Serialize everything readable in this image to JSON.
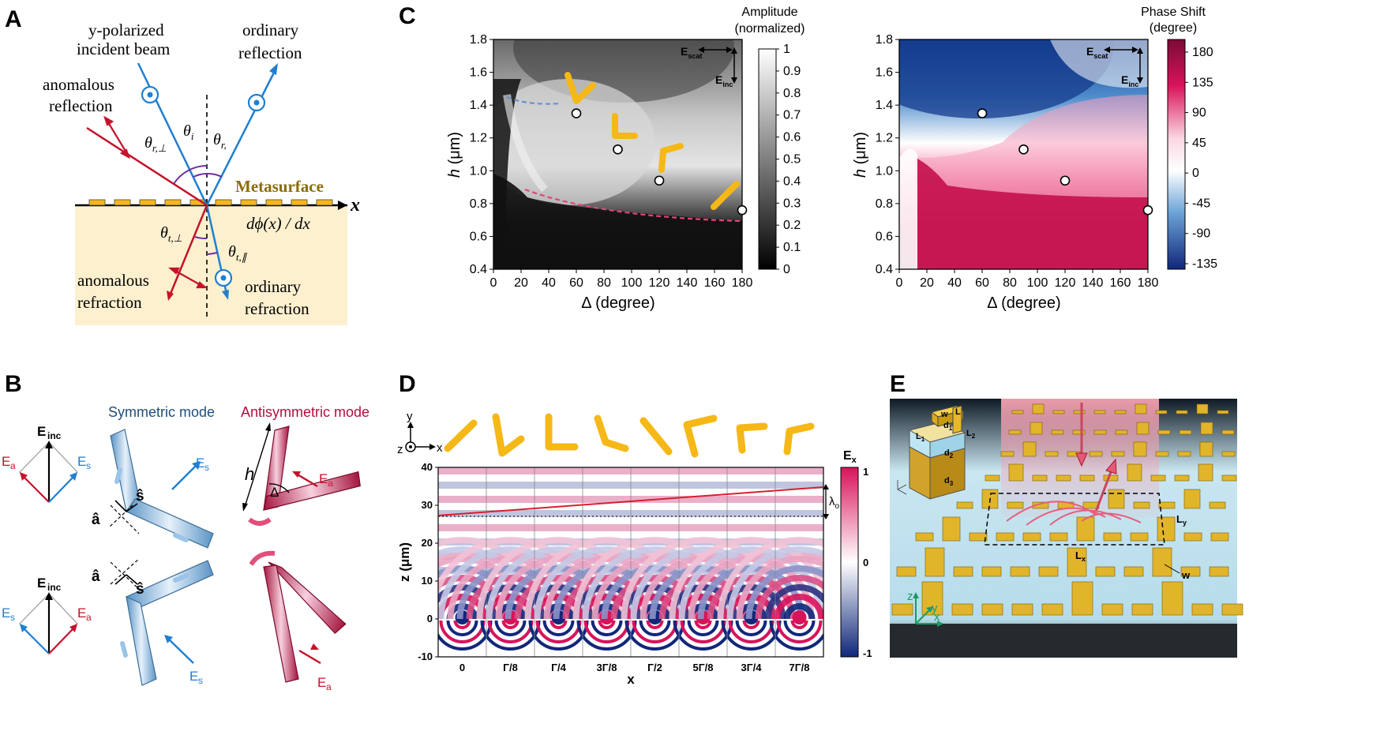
{
  "panels": {
    "A": {
      "letter": "A",
      "incident_label_1": "y-polarized",
      "incident_label_2": "incident beam",
      "ordinary_reflection_1": "ordinary",
      "ordinary_reflection_2": "reflection",
      "anomalous_reflection_1": "anomalous",
      "anomalous_reflection_2": "reflection",
      "metasurface": "Metasurface",
      "x_axis": "x",
      "gradient": "dϕ(x) / dx",
      "anomalous_refraction_1": "anomalous",
      "anomalous_refraction_2": "refraction",
      "ordinary_refraction_1": "ordinary",
      "ordinary_refraction_2": "refraction",
      "theta_i": "θ",
      "theta_i_sub": "i",
      "theta_r": "θ",
      "theta_r_sub": "r,",
      "theta_r_perp": "θ",
      "theta_r_perp_sub": "r,⊥",
      "theta_t_perp": "θ",
      "theta_t_perp_sub": "t,⊥",
      "theta_t_par": "θ",
      "theta_t_par_sub": "t,∥"
    },
    "B": {
      "letter": "B",
      "symmetric_mode": "Symmetric mode",
      "antisymmetric_mode": "Antisymmetric mode",
      "E_inc": "E",
      "E_inc_sub": "inc",
      "E_a": "E",
      "E_a_sub": "a",
      "E_s": "E",
      "E_s_sub": "s",
      "a_hat": "â",
      "s_hat": "ŝ",
      "h": "h",
      "delta": "Δ"
    },
    "C": {
      "letter": "C",
      "amp_title_1": "Amplitude",
      "amp_title_2": "(normalized)",
      "phase_title_1": "Phase Shift",
      "phase_title_2": "(degree)",
      "ylabel_h": "h",
      "ylabel_unit": " (μm)",
      "xlabel": "Δ (degree)",
      "E_scat": "E",
      "E_scat_sub": "scat",
      "E_inc": "E",
      "E_inc_sub": "inc"
    },
    "D": {
      "letter": "D",
      "ylabel": "z (μm)",
      "xlabel": "x",
      "colorbar_title": "E",
      "colorbar_title_sub": "x",
      "lambda_label": "λ",
      "lambda_sub": "o",
      "axis_y": "y",
      "axis_z": "z",
      "axis_x": "x"
    },
    "E": {
      "letter": "E",
      "w": "w",
      "d1": "d",
      "d1_sub": "1",
      "d2": "d",
      "d2_sub": "2",
      "d3": "d",
      "d3_sub": "3",
      "L1": "L",
      "L1_sub": "1",
      "L2": "L",
      "L2_sub": "2",
      "L_label": "L",
      "Lx": "L",
      "Lx_sub": "x",
      "Ly": "L",
      "Ly_sub": "y",
      "w2": "w",
      "axis_z": "z",
      "axis_y": "y",
      "axis_x": "x"
    }
  },
  "colors": {
    "blue": "#1f7fd0",
    "red": "#c4132a",
    "gold": "#f6b817",
    "metasurface_text": "#8a6d0b",
    "purple": "#7030a0",
    "substrate": "#fdf0cf"
  },
  "chart_data": [
    {
      "type": "heatmap",
      "title": "Amplitude (normalized)",
      "xlabel": "Δ (degree)",
      "ylabel": "h (μm)",
      "xlim": [
        0,
        180
      ],
      "ylim": [
        0.4,
        1.8
      ],
      "x_ticks": [
        "0",
        "20",
        "40",
        "60",
        "80",
        "100",
        "120",
        "140",
        "160",
        "180"
      ],
      "y_ticks": [
        "0.4",
        "0.6",
        "0.8",
        "1.0",
        "1.2",
        "1.4",
        "1.6",
        "1.8"
      ],
      "colorbar_ticks": [
        "0",
        "0.1",
        "0.2",
        "0.3",
        "0.4",
        "0.5",
        "0.6",
        "0.7",
        "0.8",
        "0.9",
        "1"
      ],
      "colorbar_range": [
        0,
        1
      ],
      "points": [
        {
          "x": 60,
          "y": 1.35
        },
        {
          "x": 90,
          "y": 1.13
        },
        {
          "x": 120,
          "y": 0.94
        },
        {
          "x": 180,
          "y": 0.76
        }
      ]
    },
    {
      "type": "heatmap",
      "title": "Phase Shift (degree)",
      "xlabel": "Δ (degree)",
      "ylabel": "h (μm)",
      "xlim": [
        0,
        180
      ],
      "ylim": [
        0.4,
        1.8
      ],
      "x_ticks": [
        "0",
        "20",
        "40",
        "60",
        "80",
        "100",
        "120",
        "140",
        "160",
        "180"
      ],
      "y_ticks": [
        "0.4",
        "0.6",
        "0.8",
        "1.0",
        "1.2",
        "1.4",
        "1.6",
        "1.8"
      ],
      "colorbar_ticks": [
        "180",
        "135",
        "90",
        "45",
        "0",
        "-45",
        "-90",
        "-135"
      ],
      "colorbar_range": [
        -135,
        180
      ],
      "points": [
        {
          "x": 60,
          "y": 1.35
        },
        {
          "x": 90,
          "y": 1.13
        },
        {
          "x": 120,
          "y": 0.94
        },
        {
          "x": 180,
          "y": 0.76
        }
      ]
    },
    {
      "type": "heatmap",
      "title": "",
      "xlabel": "x",
      "ylabel": "z (μm)",
      "ylim": [
        -10,
        40
      ],
      "x_ticks": [
        "0",
        "Γ/8",
        "Γ/4",
        "3Γ/8",
        "Γ/2",
        "5Γ/8",
        "3Γ/4",
        "7Γ/8"
      ],
      "y_ticks": [
        "-10",
        "0",
        "10",
        "20",
        "30",
        "40"
      ],
      "colorbar_ticks": [
        "1",
        "0",
        "-1"
      ],
      "colorbar_range": [
        -1,
        1
      ]
    }
  ]
}
